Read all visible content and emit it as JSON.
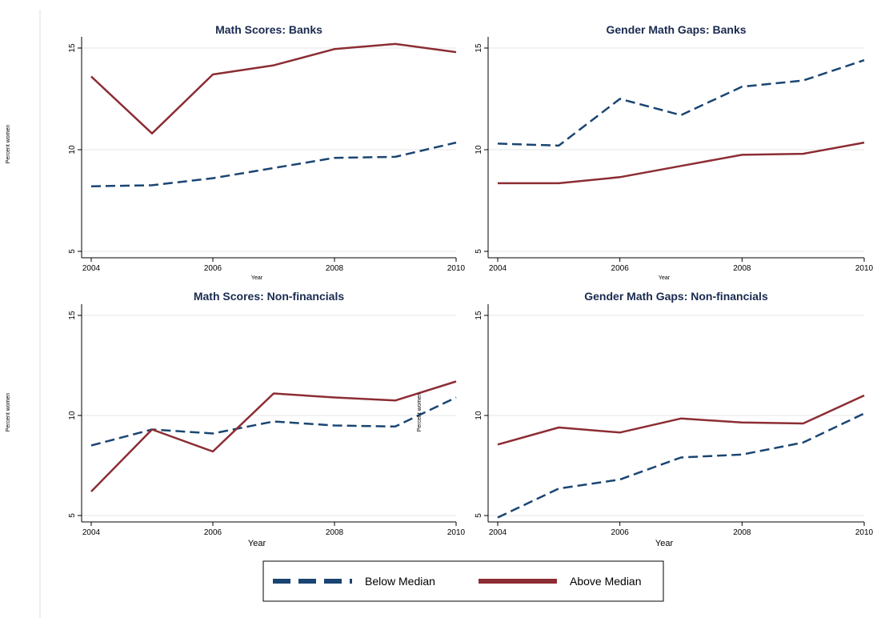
{
  "colors": {
    "below": "#1a4572",
    "above": "#8c2d33",
    "title": "#1a2a4f",
    "grid": "#e6e6e6"
  },
  "legend": {
    "below_label": "Below Median",
    "above_label": "Above Median"
  },
  "chart_data": [
    {
      "type": "line",
      "title": "Math Scores: Banks",
      "xlabel": "Year",
      "ylabel": "Percent women",
      "ylim": [
        5,
        15
      ],
      "xlim": [
        2004,
        2010
      ],
      "x": [
        2004,
        2005,
        2006,
        2007,
        2008,
        2009,
        2010
      ],
      "yticks": [
        5,
        10,
        15
      ],
      "xticks": [
        2004,
        2006,
        2008,
        2010
      ],
      "series": [
        {
          "name": "Below Median",
          "values": [
            8.2,
            8.25,
            8.6,
            9.1,
            9.6,
            9.65,
            10.35
          ]
        },
        {
          "name": "Above Median",
          "values": [
            13.6,
            10.8,
            13.7,
            14.15,
            14.95,
            15.2,
            14.8
          ]
        }
      ]
    },
    {
      "type": "line",
      "title": "Gender Math Gaps: Banks",
      "xlabel": "Year",
      "ylabel": "",
      "ylim": [
        5,
        15
      ],
      "xlim": [
        2004,
        2010
      ],
      "x": [
        2004,
        2005,
        2006,
        2007,
        2008,
        2009,
        2010
      ],
      "yticks": [
        5,
        10,
        15
      ],
      "xticks": [
        2004,
        2006,
        2008,
        2010
      ],
      "series": [
        {
          "name": "Below Median",
          "values": [
            10.3,
            10.2,
            12.5,
            11.7,
            13.1,
            13.4,
            14.4
          ]
        },
        {
          "name": "Above Median",
          "values": [
            8.35,
            8.35,
            8.65,
            9.2,
            9.75,
            9.8,
            10.35
          ]
        }
      ]
    },
    {
      "type": "line",
      "title": "Math Scores: Non-financials",
      "xlabel": "Year",
      "ylabel": "Percent women",
      "ylim": [
        5,
        15
      ],
      "xlim": [
        2004,
        2010
      ],
      "x": [
        2004,
        2005,
        2006,
        2007,
        2008,
        2009,
        2010
      ],
      "yticks": [
        5,
        10,
        15
      ],
      "xticks": [
        2004,
        2006,
        2008,
        2010
      ],
      "series": [
        {
          "name": "Below Median",
          "values": [
            8.5,
            9.3,
            9.1,
            9.7,
            9.5,
            9.45,
            10.9
          ]
        },
        {
          "name": "Above Median",
          "values": [
            6.2,
            9.3,
            8.2,
            11.1,
            10.9,
            10.75,
            11.7
          ]
        }
      ]
    },
    {
      "type": "line",
      "title": "Gender Math Gaps: Non-financials",
      "xlabel": "Year",
      "ylabel": "Percent women",
      "ylim": [
        5,
        15
      ],
      "xlim": [
        2004,
        2010
      ],
      "x": [
        2004,
        2005,
        2006,
        2007,
        2008,
        2009,
        2010
      ],
      "yticks": [
        5,
        10,
        15
      ],
      "xticks": [
        2004,
        2006,
        2008,
        2010
      ],
      "series": [
        {
          "name": "Below Median",
          "values": [
            4.9,
            6.35,
            6.8,
            7.9,
            8.05,
            8.65,
            10.1
          ]
        },
        {
          "name": "Above Median",
          "values": [
            8.55,
            9.4,
            9.15,
            9.85,
            9.65,
            9.6,
            11.0
          ]
        }
      ]
    }
  ]
}
